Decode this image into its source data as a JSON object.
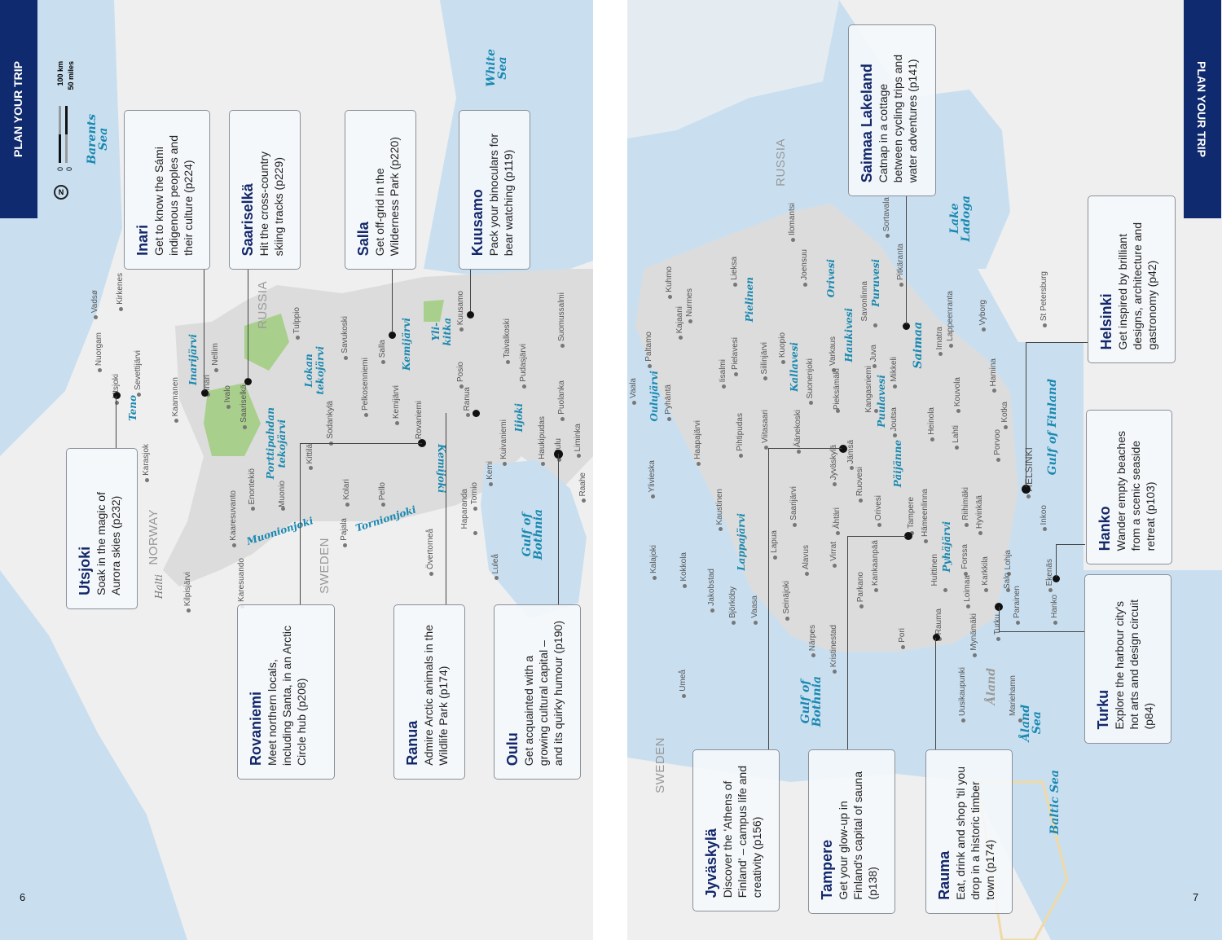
{
  "header": {
    "left_tab": "PLAN YOUR TRIP",
    "right_tab": "PLAN YOUR TRIP"
  },
  "page_numbers": {
    "left": "6",
    "right": "7"
  },
  "scale": {
    "km": "100 km",
    "miles": "50 miles",
    "zero_km": "0",
    "zero_mi": "0",
    "north": "N"
  },
  "colors": {
    "tab": "#0f2a6e",
    "sea": "#c9dff0",
    "finland": "#dcdcdc",
    "land": "#efefef",
    "park": "#a9cf8c",
    "title": "#13276a",
    "water_label": "#1a88b0"
  },
  "left_cards": [
    {
      "title": "Inari",
      "text": "Get to know the Sámi\nindigenous peoples and\ntheir culture (p224)"
    },
    {
      "title": "Saariselkä",
      "text": "Hit the cross-country\nskiing tracks (p229)"
    },
    {
      "title": "Salla",
      "text": "Get off-grid in the\nWilderness Park (p220)"
    },
    {
      "title": "Kuusamo",
      "text": "Pack your binoculars for\nbear watching (p119)"
    },
    {
      "title": "Utsjoki",
      "text": "Soak in the magic of\nAurora skies (p232)"
    },
    {
      "title": "Rovaniemi",
      "text": "Meet northern locals,\nincluding Santa, in an Arctic\nCircle hub (p208)"
    },
    {
      "title": "Ranua",
      "text": "Admire Arctic animals in the\nWildlife Park (p174)"
    },
    {
      "title": "Oulu",
      "text": "Get acquainted with a\ngrowing cultural capital –\nand its quirky humour (p190)"
    }
  ],
  "right_cards": [
    {
      "title": "Saimaa Lakeland",
      "text": "Catnap in a cottage\nbetween cycling trips and\nwater adventures (p141)"
    },
    {
      "title": "Helsinki",
      "text": "Get inspired by brilliant\ndesigns, architecture and\ngastronomy (p42)"
    },
    {
      "title": "Hanko",
      "text": "Wander empty beaches\nfrom a scenic seaside\nretreat (p103)"
    },
    {
      "title": "Turku",
      "text": "Explore the harbour city's\nhot arts and design circuit\n(p84)"
    },
    {
      "title": "Jyväskylä",
      "text": "Discover the 'Athens of\nFinland' – campus life and\ncreativity (p156)"
    },
    {
      "title": "Tampere",
      "text": "Get your glow-up in\nFinland's capital of sauna\n(p138)"
    },
    {
      "title": "Rauma",
      "text": "Eat, drink and shop 'til you\ndrop in a historic timber\ntown (p174)"
    }
  ],
  "left_water": [
    "Barents\nSea",
    "White\nSea",
    "Gulf of\nBothnia",
    "Teno",
    "Inarijärvi",
    "Lokan\ntekojärvi",
    "Porttipahdan\ntekojärvi",
    "Kemijärvi",
    "Yli-\nkitka",
    "Kemijoki",
    "Iijoki",
    "Muonionjoki",
    "Tornionjoki",
    "Halti"
  ],
  "left_countries": [
    "NORWAY",
    "SWEDEN",
    "RUSSIA"
  ],
  "left_places": [
    "Vadsø",
    "Kirkenes",
    "Nuorgam",
    "Utsjoki",
    "Sevettijärvi",
    "Nellim",
    "Inari",
    "Ivalo",
    "Kaamanen",
    "Saariselkä",
    "Karasjok",
    "Tulppio",
    "Savukoski",
    "Salla",
    "Sodankylä",
    "Pelkosenniemi",
    "Kemijärvi",
    "Kittilä",
    "Enontekiö",
    "Muonio",
    "Kolari",
    "Pello",
    "Rovaniemi",
    "Posio",
    "Kuusamo",
    "Taivalkoski",
    "Ranua",
    "Pudasjärvi",
    "Suomussalmi",
    "Puolanka",
    "Kemi",
    "Kuivaniemi",
    "Haukipudas",
    "Oulu",
    "Liminka",
    "Raahe",
    "Tornio",
    "Haparanda",
    "Övertorneå",
    "Pajala",
    "Luleå",
    "Kaaresuvanto",
    "Karesuando",
    "Kilpisjärvi"
  ],
  "right_water": [
    "Saimaa",
    "Lake\nLadoga",
    "Puruvesi",
    "Haukivesi",
    "Orivesi",
    "Pielinen",
    "Kallavesi",
    "Puulavesi",
    "Päijänne",
    "Pyhäjärvi",
    "Lappajärvi",
    "Oulujärvi",
    "Gulf of Finland",
    "Gulf of\nBothnia",
    "Baltic Sea",
    "Åland\nSea",
    "Åland"
  ],
  "right_countries": [
    "RUSSIA",
    "SWEDEN"
  ],
  "right_places": [
    "Paltamo",
    "Kajaani",
    "Kuhmo",
    "Nurmes",
    "Lieksa",
    "Joensuu",
    "Ilomantsi",
    "Sortavala",
    "Pitkäranta",
    "Savonlinna",
    "Kuopio",
    "Siilinjärvi",
    "Iisalmi",
    "Pielavesi",
    "Suonenjoki",
    "Varkaus",
    "Juva",
    "Mikkeli",
    "Kangasniemi",
    "Pieksämäki",
    "Joutsa",
    "Imatra",
    "Lappeenranta",
    "Vyborg",
    "St Petersburg",
    "Kouvola",
    "Hamina",
    "Kotka",
    "Lahti",
    "Heinola",
    "Porvoo",
    "HELSINKI",
    "Hyvinkää",
    "Riihimäki",
    "Hämeenlinna",
    "Forssa",
    "Karkkila",
    "Lohja",
    "Inkoo",
    "Ekenäs",
    "Salo",
    "Hanko",
    "Turku",
    "Parainen",
    "Uusikaupunki",
    "Mynämäki",
    "Loimaa",
    "Rauma",
    "Huittinen",
    "Pori",
    "Kankaanpää",
    "Parkano",
    "Tampere",
    "Orivesi",
    "Ruovesi",
    "Jämsä",
    "Jyväskylä",
    "Äänekoski",
    "Viitasaari",
    "Pihtipudas",
    "Haapajärvi",
    "Ylivieska",
    "Kalajoki",
    "Kokkola",
    "Jakobstad",
    "Kaustinen",
    "Lapua",
    "Seinäjoki",
    "Alavus",
    "Ähtäri",
    "Saarijärvi",
    "Virrat",
    "Vaasa",
    "Björköby",
    "Närpes",
    "Kristinestad",
    "Umeå",
    "Mariehamn",
    "Vaala",
    "Pyhäntä"
  ]
}
